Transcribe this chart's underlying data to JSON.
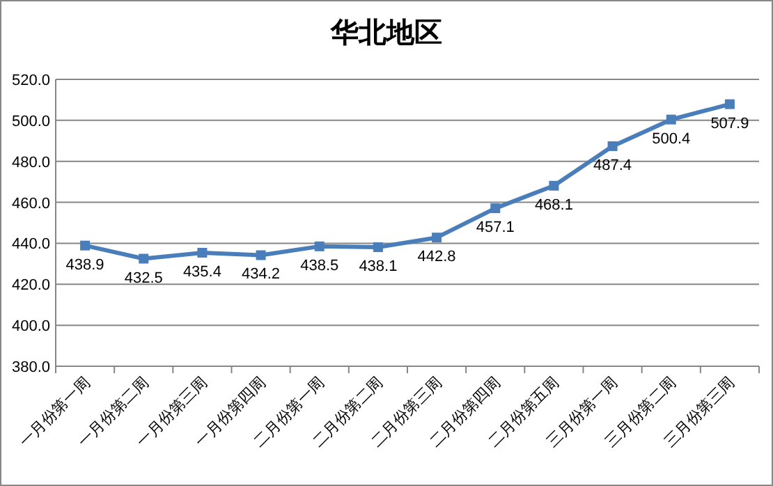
{
  "chart_data": {
    "type": "line",
    "title": "华北地区",
    "categories": [
      "一月份第一周",
      "一月份第二周",
      "一月份第三周",
      "一月份第四周",
      "二月份第一周",
      "二月份第二周",
      "二月份第三周",
      "二月份第四周",
      "二月份第五周",
      "三月份第一周",
      "三月份第二周",
      "三月份第三周"
    ],
    "series": [
      {
        "color": "#4a7ebb",
        "values": [
          438.9,
          432.5,
          435.4,
          434.2,
          438.5,
          438.1,
          442.8,
          457.1,
          468.1,
          487.4,
          500.4,
          507.9
        ]
      }
    ],
    "ylim": [
      380,
      520
    ],
    "yticks": [
      {
        "value": 380,
        "label": "380.0"
      },
      {
        "value": 400,
        "label": "400.0"
      },
      {
        "value": 420,
        "label": "420.0"
      },
      {
        "value": 440,
        "label": "440.0"
      },
      {
        "value": 460,
        "label": "460.0"
      },
      {
        "value": 480,
        "label": "480.0"
      },
      {
        "value": 500,
        "label": "500.0"
      },
      {
        "value": 520,
        "label": "520.0"
      }
    ],
    "grid": "y",
    "marker": "square",
    "line_style": "solid",
    "data_labels": true
  }
}
